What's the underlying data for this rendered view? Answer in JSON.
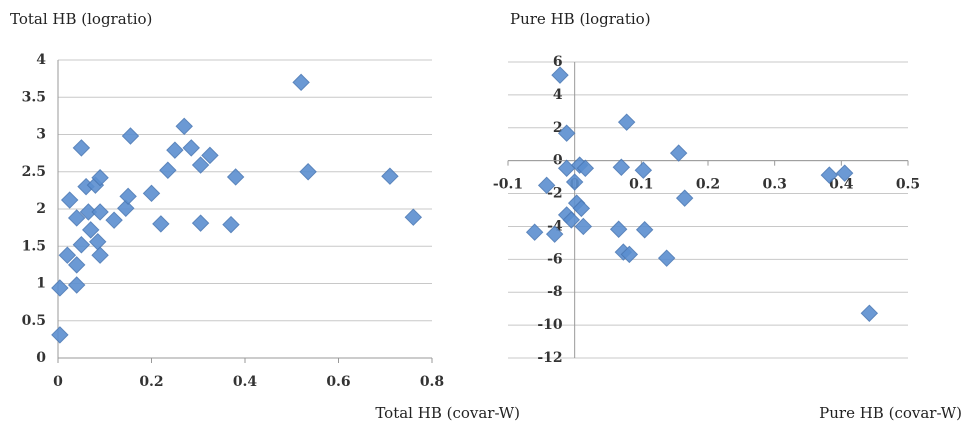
{
  "chart_data": [
    {
      "type": "scatter",
      "title": "Total HB (logratio)",
      "x_label": "Total HB (covar-W)",
      "xlim": [
        0,
        0.8
      ],
      "xticks": [
        0,
        0.2,
        0.4,
        0.6,
        0.8
      ],
      "ylim": [
        0,
        4
      ],
      "yticks": [
        0,
        0.5,
        1,
        1.5,
        2,
        2.5,
        3,
        3.5,
        4
      ],
      "grid": true,
      "color": "#5b8fd0",
      "x": [
        0.004,
        0.004,
        0.04,
        0.02,
        0.04,
        0.05,
        0.025,
        0.04,
        0.065,
        0.05,
        0.06,
        0.08,
        0.09,
        0.07,
        0.085,
        0.09,
        0.09,
        0.12,
        0.145,
        0.15,
        0.155,
        0.2,
        0.22,
        0.235,
        0.25,
        0.27,
        0.285,
        0.305,
        0.305,
        0.325,
        0.37,
        0.38,
        0.52,
        0.535,
        0.71,
        0.76
      ],
      "y": [
        0.31,
        0.94,
        0.98,
        1.38,
        1.25,
        1.52,
        2.12,
        1.88,
        1.96,
        2.82,
        2.3,
        2.32,
        2.42,
        1.72,
        1.56,
        1.38,
        1.96,
        1.85,
        2.01,
        2.17,
        2.98,
        2.21,
        1.8,
        2.52,
        2.79,
        3.11,
        2.82,
        2.59,
        1.81,
        2.72,
        1.79,
        2.43,
        3.7,
        2.5,
        2.44,
        1.89
      ]
    },
    {
      "type": "scatter",
      "title": "Pure HB (logratio)",
      "x_label": "Pure HB (covar-W)",
      "xlim": [
        -0.1,
        0.5
      ],
      "xticks": [
        -0.1,
        0,
        0.1,
        0.2,
        0.3,
        0.4,
        0.5
      ],
      "ylim": [
        -12,
        6
      ],
      "yticks": [
        -12,
        -10,
        -8,
        -6,
        -4,
        -2,
        0,
        2,
        4,
        6
      ],
      "grid": true,
      "color": "#5b8fd0",
      "x": [
        -0.022,
        -0.012,
        0.078,
        0.156,
        -0.042,
        -0.012,
        0.0075,
        0.016,
        0,
        0.07,
        0.103,
        0.165,
        0.003,
        0.01,
        -0.012,
        -0.005,
        0.013,
        -0.06,
        -0.03,
        0.066,
        0.105,
        0.073,
        0.082,
        0.138,
        0.382,
        0.405,
        0.442
      ],
      "y": [
        5.2,
        1.67,
        2.34,
        0.46,
        -1.5,
        -0.46,
        -0.27,
        -0.46,
        -1.3,
        -0.4,
        -0.58,
        -2.28,
        -2.58,
        -2.9,
        -3.3,
        -3.6,
        -4.0,
        -4.35,
        -4.47,
        -4.17,
        -4.2,
        -5.56,
        -5.7,
        -5.93,
        -0.88,
        -0.76,
        -9.28
      ]
    }
  ]
}
